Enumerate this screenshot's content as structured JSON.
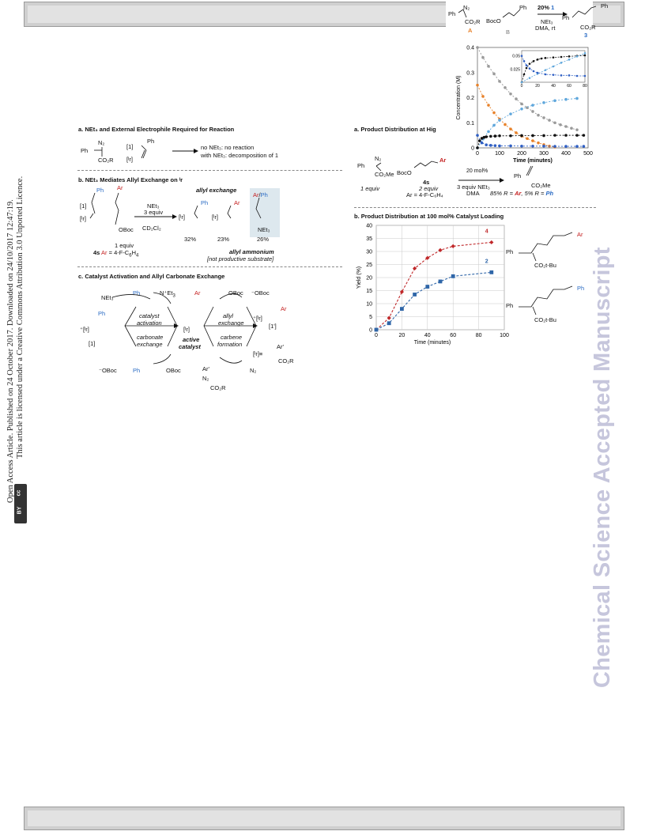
{
  "side_text": {
    "line1": "Open Access Article. Published on 24 October 2017. Downloaded on 24/10/2017 12:47:19.",
    "line2": "This article is licensed under a Creative Commons Attribution 3.0 Unported Licence.",
    "badge": "BY"
  },
  "watermark": "Chemical Science Accepted Manuscript",
  "left_scheme": {
    "a_title": "a. NEt₃ and External Electrophile Required for Reaction",
    "a_ph": "Ph",
    "a_n2": "N₂",
    "a_co2r": "CO₂R",
    "a_cat1": "[1]",
    "a_ir": "[ᴵr]",
    "a_result1": "no NEt₃: no reaction",
    "a_result2": "with NEt₃: decomposition of 1",
    "b_title": "b. NEt₃ Mediates Allyl Exchange on ᴵr",
    "b_cat": "[1]",
    "b_ir": "[ᴵr]",
    "b_ph": "Ph",
    "b_ar": "Ar",
    "b_oboc": "OBoc",
    "b_reagent1": "NEt₃",
    "b_reagent2": "3 equiv",
    "b_solvent": "CD₂Cl₂",
    "b_allyl_exchange": "allyl exchange",
    "b_pct1": "32%",
    "b_pct2": "23%",
    "b_pct3": "26%",
    "b_equiv": "1 equiv",
    "b_4s": "4s Ar = 4-F-C₆H₄",
    "b_arph": "Ar/Ph",
    "b_net3": "NEt₃",
    "b_allyl_ammonium": "allyl ammonium",
    "b_not_productive": "[not productive substrate]",
    "c_title": "c. Catalyst Activation and Allyl Carbonate Exchange",
    "c_net3": "NEt₃",
    "c_cat_act1": "catalyst",
    "c_cat_act2": "activation",
    "c_carb_ex1": "carbonate",
    "c_carb_ex2": "exchange",
    "c_ir": "[ᴵr]",
    "c_active1": "active",
    "c_active2": "catalyst",
    "c_allyl1": "allyl",
    "c_allyl2": "exchange",
    "c_carbene1": "carbene",
    "c_carbene2": "formation",
    "c_cat1": "[1]",
    "c_cat1p": "[1']",
    "c_oboc": "OBoc",
    "c_oboc_anion": "⁻OBoc",
    "c_n2": "N₂",
    "c_co2r": "CO₂R",
    "c_arp": "Ar'",
    "c_ph": "Ph",
    "c_ar": "Ar"
  },
  "right_scheme": {
    "a_title": "a. Product Distribution at Hig",
    "a_n2": "N₂",
    "a_ph": "Ph",
    "a_co2me": "CO₂Me",
    "a_boco": "BocO",
    "a_ar": "Ar",
    "a_4s": "4s",
    "a_2equiv": "2 equiv",
    "a_ar_def": "Ar = 4-F-C₆H₄",
    "a_1equiv": "1 equiv",
    "a_mol": "20 mol%",
    "a_reagent": "3 equiv NEt₃",
    "a_solvent": "DMA",
    "a_result": "85% R = Ar, 5% R = Ph",
    "b_title": "b. Product Distribution at 100 mol% Catalyst Loading",
    "b_co2tbu": "CO₂t-Bu",
    "b_ph": "Ph",
    "b_ar": "Ar"
  },
  "inset_scheme": {
    "a_label": "A",
    "b_label": "B",
    "p_label": "3",
    "cat": "20% 1",
    "reagent": "NEt₃",
    "cond": "DMA, rt",
    "ph": "Ph",
    "n2": "N₂",
    "co2r": "CO₂R",
    "boco": "BocO"
  },
  "chart_data": [
    {
      "type": "line",
      "title": "",
      "xlabel": "Time (minutes)",
      "ylabel": "Yield (%)",
      "xlim": [
        0,
        100
      ],
      "ylim": [
        0,
        40
      ],
      "xticks": [
        0,
        20,
        40,
        60,
        80,
        100
      ],
      "yticks": [
        0,
        5,
        10,
        15,
        20,
        25,
        30,
        35,
        40
      ],
      "series": [
        {
          "name": "4",
          "color": "#c0282a",
          "marker": "diamond",
          "x": [
            0,
            10,
            20,
            30,
            40,
            50,
            60,
            90
          ],
          "y": [
            0,
            4.5,
            14.5,
            23.5,
            27.5,
            30.5,
            32,
            33.5
          ]
        },
        {
          "name": "2",
          "color": "#2f66a8",
          "marker": "square",
          "x": [
            0,
            10,
            20,
            30,
            40,
            50,
            60,
            90
          ],
          "y": [
            0,
            2.5,
            8,
            13.5,
            16.5,
            18.5,
            20.5,
            22
          ]
        }
      ]
    },
    {
      "type": "scatter",
      "title": "",
      "xlabel": "Time (minutes)",
      "ylabel": "Concentration (M)",
      "xlim": [
        0,
        500
      ],
      "ylim": [
        0,
        0.4
      ],
      "xticks": [
        0,
        100,
        200,
        300,
        400,
        500
      ],
      "yticks": [
        0,
        0.1,
        0.2,
        0.3,
        0.4
      ],
      "series": [
        {
          "name": "",
          "color": "#9a9a9a",
          "x": [
            0,
            25,
            50,
            75,
            100,
            125,
            150,
            175,
            200,
            225,
            250,
            275,
            300,
            325,
            350,
            375,
            400,
            425,
            450
          ],
          "y": [
            0.4,
            0.36,
            0.325,
            0.295,
            0.265,
            0.24,
            0.215,
            0.195,
            0.175,
            0.16,
            0.145,
            0.13,
            0.12,
            0.11,
            0.1,
            0.092,
            0.085,
            0.078,
            0.072
          ]
        },
        {
          "name": "",
          "color": "#e8822a",
          "x": [
            0,
            25,
            50,
            75,
            100,
            125,
            150,
            175,
            200,
            225,
            250,
            275,
            300,
            325,
            350
          ],
          "y": [
            0.25,
            0.205,
            0.17,
            0.14,
            0.115,
            0.093,
            0.075,
            0.06,
            0.047,
            0.037,
            0.028,
            0.02,
            0.013,
            0.007,
            0.003
          ]
        },
        {
          "name": "",
          "color": "#5fa7dc",
          "x": [
            0,
            25,
            50,
            75,
            100,
            150,
            200,
            250,
            300,
            350,
            400,
            450
          ],
          "y": [
            0,
            0.035,
            0.065,
            0.09,
            0.11,
            0.135,
            0.155,
            0.17,
            0.18,
            0.188,
            0.193,
            0.197
          ]
        },
        {
          "name": "",
          "color": "#111111",
          "x": [
            0,
            10,
            20,
            30,
            40,
            60,
            80,
            100,
            150,
            200,
            250,
            300,
            350,
            400,
            450,
            480
          ],
          "y": [
            0,
            0.028,
            0.038,
            0.042,
            0.044,
            0.046,
            0.047,
            0.048,
            0.048,
            0.049,
            0.049,
            0.049,
            0.05,
            0.05,
            0.05,
            0.05
          ]
        },
        {
          "name": "",
          "color": "#2f5fc4",
          "x": [
            0,
            20,
            40,
            60,
            80,
            100,
            150,
            200,
            250,
            300,
            350,
            400,
            450,
            480
          ],
          "y": [
            0.05,
            0.02,
            0.012,
            0.01,
            0.009,
            0.008,
            0.008,
            0.007,
            0.007,
            0.007,
            0.006,
            0.006,
            0.006,
            0.006
          ]
        }
      ]
    },
    {
      "type": "scatter",
      "title": "",
      "xlabel": "",
      "ylabel": "",
      "xlim": [
        0,
        80
      ],
      "ylim": [
        0,
        0.06
      ],
      "xticks": [
        0,
        20,
        40,
        60,
        80
      ],
      "yticks": [
        0.025,
        0.05
      ],
      "series": [
        {
          "name": "",
          "color": "#111111",
          "x": [
            0,
            3,
            6,
            10,
            15,
            20,
            25,
            30,
            40,
            50,
            60,
            70,
            80
          ],
          "y": [
            0,
            0.015,
            0.027,
            0.035,
            0.04,
            0.043,
            0.045,
            0.046,
            0.047,
            0.048,
            0.049,
            0.05,
            0.051
          ]
        },
        {
          "name": "",
          "color": "#5fa7dc",
          "x": [
            0,
            10,
            20,
            30,
            40,
            50,
            60,
            70,
            80
          ],
          "y": [
            0,
            0.008,
            0.016,
            0.023,
            0.03,
            0.037,
            0.043,
            0.049,
            0.055
          ]
        },
        {
          "name": "",
          "color": "#2f5fc4",
          "x": [
            0,
            3,
            6,
            10,
            15,
            20,
            30,
            40,
            50,
            60,
            70,
            80
          ],
          "y": [
            0.05,
            0.04,
            0.032,
            0.026,
            0.021,
            0.018,
            0.015,
            0.014,
            0.013,
            0.013,
            0.012,
            0.012
          ]
        }
      ]
    }
  ]
}
